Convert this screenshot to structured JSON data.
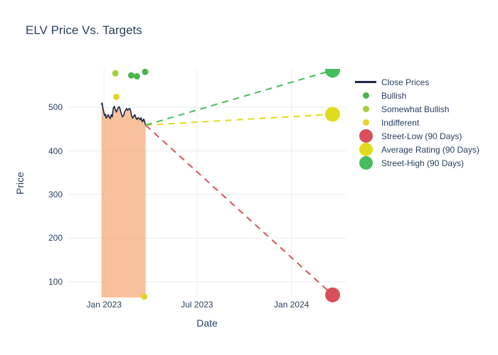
{
  "title": "ELV Price Vs. Targets",
  "chart_data": {
    "type": "line",
    "title": "ELV Price Vs. Targets",
    "xlabel": "Date",
    "ylabel": "Price",
    "x_ticks": [
      {
        "label": "Jan 2023",
        "date": "2023-01-01"
      },
      {
        "label": "Jul 2023",
        "date": "2023-07-01"
      },
      {
        "label": "Jan 2024",
        "date": "2024-01-01"
      }
    ],
    "y_ticks": [
      100,
      200,
      300,
      400,
      500
    ],
    "x_range": [
      "2022-10-22",
      "2024-04-17"
    ],
    "y_range": [
      64,
      588
    ],
    "grid": true,
    "legend_position": "right",
    "text_color": "#2a3f5f",
    "grid_color": "#e9eef6",
    "background_color": "#ffffff",
    "series": [
      {
        "id": "close_prices",
        "name": "Close Prices",
        "type": "line",
        "color": "#1a2745",
        "fill": "tozeroy",
        "fill_color": "rgba(245,153,95,0.62)",
        "line_width": 1.6,
        "points": [
          [
            "2022-12-27",
            507
          ],
          [
            "2022-12-28",
            510
          ],
          [
            "2022-12-30",
            497
          ],
          [
            "2023-01-02",
            481
          ],
          [
            "2023-01-04",
            484
          ],
          [
            "2023-01-05",
            475
          ],
          [
            "2023-01-07",
            478
          ],
          [
            "2023-01-09",
            483
          ],
          [
            "2023-01-11",
            478
          ],
          [
            "2023-01-13",
            474
          ],
          [
            "2023-01-15",
            483
          ],
          [
            "2023-01-17",
            478
          ],
          [
            "2023-01-19",
            498
          ],
          [
            "2023-01-21",
            502
          ],
          [
            "2023-01-23",
            495
          ],
          [
            "2023-01-25",
            489
          ],
          [
            "2023-01-27",
            495
          ],
          [
            "2023-01-29",
            500
          ],
          [
            "2023-01-31",
            501
          ],
          [
            "2023-02-02",
            492
          ],
          [
            "2023-02-04",
            484
          ],
          [
            "2023-02-06",
            478
          ],
          [
            "2023-02-08",
            481
          ],
          [
            "2023-02-10",
            489
          ],
          [
            "2023-02-12",
            494
          ],
          [
            "2023-02-14",
            497
          ],
          [
            "2023-02-16",
            493
          ],
          [
            "2023-02-18",
            496
          ],
          [
            "2023-02-20",
            497
          ],
          [
            "2023-02-22",
            491
          ],
          [
            "2023-02-24",
            479
          ],
          [
            "2023-02-26",
            475
          ],
          [
            "2023-02-28",
            480
          ],
          [
            "2023-03-02",
            483
          ],
          [
            "2023-03-04",
            476
          ],
          [
            "2023-03-06",
            472
          ],
          [
            "2023-03-08",
            476
          ],
          [
            "2023-03-10",
            475
          ],
          [
            "2023-03-12",
            471
          ],
          [
            "2023-03-14",
            476
          ],
          [
            "2023-03-16",
            468
          ],
          [
            "2023-03-17",
            467
          ],
          [
            "2023-03-19",
            473
          ],
          [
            "2023-03-20",
            471
          ],
          [
            "2023-03-21",
            467
          ],
          [
            "2023-03-22",
            463
          ],
          [
            "2023-03-23",
            459
          ]
        ]
      },
      {
        "id": "bullish",
        "name": "Bullish",
        "type": "scatter",
        "color": "#4bb54b",
        "marker_size": 9,
        "points": [
          [
            "2023-02-23",
            573
          ],
          [
            "2023-03-06",
            571
          ],
          [
            "2023-03-22",
            581
          ]
        ]
      },
      {
        "id": "somewhat_bullish",
        "name": "Somewhat Bullish",
        "type": "scatter",
        "color": "#a4cf3d",
        "marker_size": 9,
        "points": [
          [
            "2023-01-23",
            578
          ]
        ]
      },
      {
        "id": "indifferent",
        "name": "Indifferent",
        "type": "scatter",
        "color": "#e5d22b",
        "marker_size": 9,
        "points": [
          [
            "2023-01-25",
            524
          ],
          [
            "2023-03-20",
            66
          ]
        ]
      },
      {
        "id": "street_low",
        "name": "Street-Low (90 Days)",
        "type": "dashed_line_marker",
        "color": "#d9505a",
        "marker_size": 21,
        "points": [
          [
            "2023-03-23",
            459
          ],
          [
            "2024-03-21",
            70
          ]
        ]
      },
      {
        "id": "average_rating",
        "name": "Average Rating (90 Days)",
        "type": "dashed_line_marker",
        "color": "#e0dc1c",
        "marker_size": 21,
        "points": [
          [
            "2023-03-23",
            459
          ],
          [
            "2024-03-21",
            484
          ]
        ]
      },
      {
        "id": "street_high",
        "name": "Street-High (90 Days)",
        "type": "dashed_line_marker",
        "color": "#45bd5c",
        "marker_size": 21,
        "points": [
          [
            "2023-03-23",
            459
          ],
          [
            "2024-03-21",
            585
          ]
        ]
      }
    ]
  }
}
